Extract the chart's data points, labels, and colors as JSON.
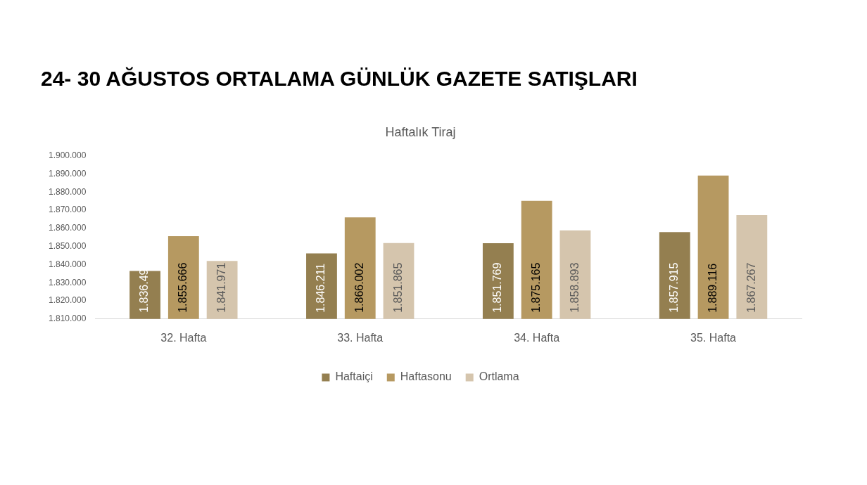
{
  "chart_data": {
    "type": "bar",
    "title": "24- 30 AĞUSTOS ORTALAMA GÜNLÜK GAZETE SATIŞLARI",
    "subtitle": "Haftalık Tiraj",
    "categories": [
      "32. Hafta",
      "33. Hafta",
      "34. Hafta",
      "35. Hafta"
    ],
    "series": [
      {
        "name": "Haftaiçi",
        "color": "#947f50",
        "values": [
          1836490,
          1846211,
          1851769,
          1857915
        ],
        "value_labels": [
          "1.836.49",
          "1.846.211",
          "1.851.769",
          "1.857.915"
        ]
      },
      {
        "name": "Haftasonu",
        "color": "#b69961",
        "values": [
          1855666,
          1866002,
          1875165,
          1889116
        ],
        "value_labels": [
          "1.855.666",
          "1.866.002",
          "1.875.165",
          "1.889.116"
        ]
      },
      {
        "name": "Ortlama",
        "color": "#d5c5ad",
        "values": [
          1841971,
          1851865,
          1858893,
          1867267
        ],
        "value_labels": [
          "1.841.971",
          "1.851.865",
          "1.858.893",
          "1.867.267"
        ]
      }
    ],
    "ylim": [
      1810000,
      1900000
    ],
    "yticks": [
      {
        "value": 1810000,
        "label": "1.810.000"
      },
      {
        "value": 1820000,
        "label": "1.820.000"
      },
      {
        "value": 1830000,
        "label": "1.830.000"
      },
      {
        "value": 1840000,
        "label": "1.840.000"
      },
      {
        "value": 1850000,
        "label": "1.850.000"
      },
      {
        "value": 1860000,
        "label": "1.860.000"
      },
      {
        "value": 1870000,
        "label": "1.870.000"
      },
      {
        "value": 1880000,
        "label": "1.880.000"
      },
      {
        "value": 1890000,
        "label": "1.890.000"
      },
      {
        "value": 1900000,
        "label": "1.900.000"
      }
    ],
    "grid": false,
    "legend": "bottom"
  }
}
